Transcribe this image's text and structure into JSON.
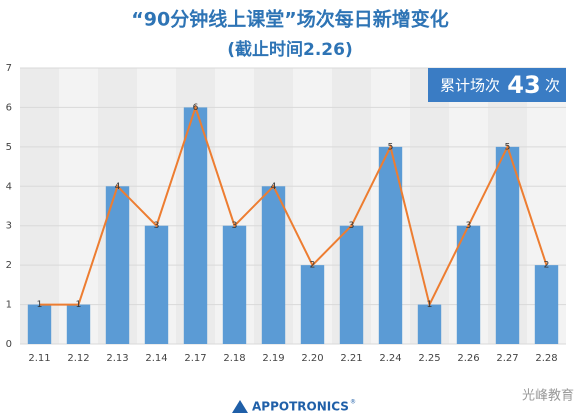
{
  "chart_data": {
    "type": "bar",
    "title": "“90分钟线上课堂”场次每日新增变化",
    "subtitle": "(截止时间2.26)",
    "categories": [
      "2.11",
      "2.12",
      "2.13",
      "2.14",
      "2.17",
      "2.18",
      "2.19",
      "2.20",
      "2.21",
      "2.24",
      "2.25",
      "2.26",
      "2.27",
      "2.28"
    ],
    "values": [
      1,
      1,
      4,
      3,
      6,
      3,
      4,
      2,
      3,
      5,
      1,
      3,
      5,
      2
    ],
    "color": "#5b9bd5",
    "line_color": "#ed7d31",
    "ylim": [
      0,
      7
    ],
    "yticks": [
      0,
      1,
      2,
      3,
      4,
      5,
      6,
      7
    ],
    "total": {
      "label": "累计场次",
      "value": 43,
      "unit": "次"
    },
    "logo": "APPOTRONICS",
    "logo_mark": "®",
    "watermark": "光峰教育"
  }
}
